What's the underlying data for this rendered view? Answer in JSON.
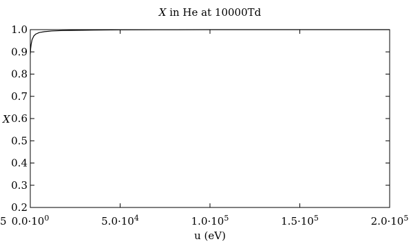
{
  "chart_data": {
    "type": "line",
    "title_var": "X",
    "title_rest": " in He at 10000Td",
    "xlabel": "u (eV)",
    "ylabel": "X",
    "xlim": [
      0,
      200000
    ],
    "ylim": [
      0.2,
      1.0
    ],
    "x_ticks": [
      {
        "value": 0,
        "mantissa": "0.0",
        "exponent": "0"
      },
      {
        "value": 50000,
        "mantissa": "5.0",
        "exponent": "4"
      },
      {
        "value": 100000,
        "mantissa": "1.0",
        "exponent": "5"
      },
      {
        "value": 150000,
        "mantissa": "1.5",
        "exponent": "5"
      },
      {
        "value": 200000,
        "mantissa": "2.0",
        "exponent": "5"
      }
    ],
    "y_ticks": [
      {
        "value": 0.2,
        "label": "0.2"
      },
      {
        "value": 0.3,
        "label": "0.3"
      },
      {
        "value": 0.4,
        "label": "0.4"
      },
      {
        "value": 0.5,
        "label": "0.5"
      },
      {
        "value": 0.6,
        "label": "0.6"
      },
      {
        "value": 0.7,
        "label": "0.7"
      },
      {
        "value": 0.8,
        "label": "0.8"
      },
      {
        "value": 0.9,
        "label": "0.9"
      },
      {
        "value": 1.0,
        "label": "1.0"
      }
    ],
    "left_edge_fragment": "5",
    "grid": false,
    "series": [
      {
        "x": [
          0,
          200,
          500,
          1000,
          2000,
          3000,
          5000,
          8000,
          12000,
          18000,
          25000,
          35000,
          50000,
          70000,
          100000,
          150000,
          200000
        ],
        "y": [
          0.89,
          0.915,
          0.935,
          0.955,
          0.972,
          0.98,
          0.987,
          0.991,
          0.994,
          0.996,
          0.997,
          0.998,
          0.999,
          0.9995,
          1.0,
          1.0,
          1.0
        ]
      }
    ]
  }
}
